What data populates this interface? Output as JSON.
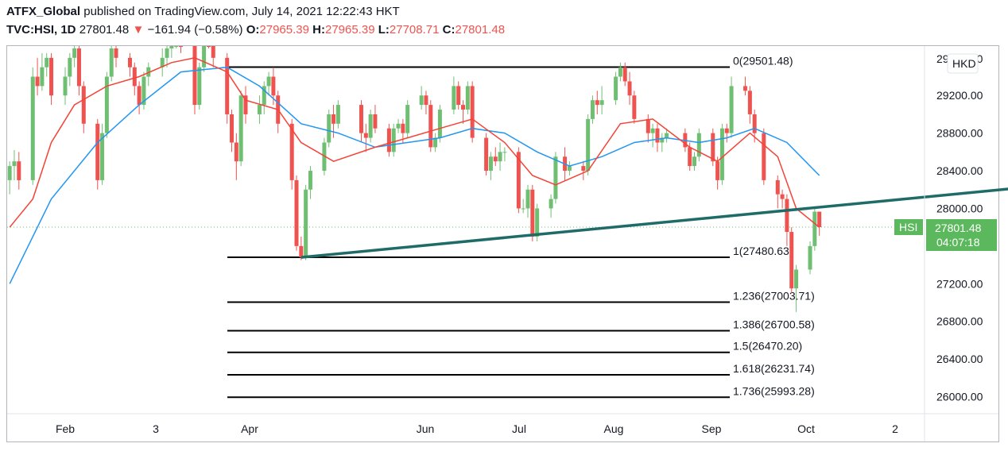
{
  "header": {
    "author": "ATFX_Global",
    "published": " published on TradingView.com, July 14, 2021 12:22:43 HKT",
    "symbol": "TVC:HSI, 1D",
    "last": "27801.48",
    "arrow": "▼",
    "change": "−161.94 (−0.58%)",
    "o_label": "O:",
    "o_val": "27965.39",
    "h_label": "H:",
    "h_val": "27965.39",
    "l_label": "L:",
    "l_val": "27708.71",
    "c_label": "C:",
    "c_val": "27801.48"
  },
  "price_scale": {
    "currency": "HKD",
    "ticks": [
      "29200.00",
      "28800.00",
      "28400.00",
      "28000.00",
      "27200.00",
      "26800.00",
      "26400.00",
      "26000.00"
    ],
    "top_partial": "29600.00",
    "last_price_label": "27801.48",
    "countdown": "04:07:18",
    "symbol_badge": "HSI"
  },
  "time_scale": {
    "labels": [
      "Feb",
      "3",
      "Apr",
      "Jun",
      "Jul",
      "Aug",
      "Sep",
      "Oct",
      "2"
    ]
  },
  "fib_levels": [
    {
      "label": "0(29501.48)",
      "price": 29501.48
    },
    {
      "label": "1(27480.63)",
      "price": 27480.63
    },
    {
      "label": "1.236(27003.71)",
      "price": 27003.71
    },
    {
      "label": "1.386(26700.58)",
      "price": 26700.58
    },
    {
      "label": "1.5(26470.20)",
      "price": 26470.2
    },
    {
      "label": "1.618(26231.74)",
      "price": 26231.74
    },
    {
      "label": "1.736(25993.28)",
      "price": 25993.28
    }
  ],
  "colors": {
    "up": "#6fbf73",
    "down": "#ef5350",
    "ma_fast": "#f44336",
    "ma_slow": "#2196f3",
    "trendline": "#1e6b67",
    "badge": "#5cb85c"
  },
  "chart_data": {
    "type": "candlestick",
    "title": "",
    "ylim": [
      25900,
      29700
    ],
    "trendline": {
      "start": [
        "2021-03-24",
        27480
      ],
      "end": [
        "2021-09-02",
        28250
      ]
    },
    "candles": [
      [
        "2021-01-20",
        28300,
        28450,
        28150,
        28500
      ],
      [
        "2021-01-21",
        28450,
        28500,
        28300,
        28620
      ],
      [
        "2021-01-22",
        28500,
        28300,
        28200,
        28600
      ],
      [
        "2021-01-25",
        28300,
        29400,
        28250,
        29500
      ],
      [
        "2021-01-26",
        29400,
        29300,
        29200,
        29600
      ],
      [
        "2021-01-27",
        29300,
        29500,
        29250,
        29650
      ],
      [
        "2021-01-28",
        29500,
        29600,
        29400,
        29650
      ],
      [
        "2021-01-29",
        29600,
        29200,
        29100,
        29650
      ],
      [
        "2021-02-01",
        29200,
        29400,
        29100,
        29500
      ],
      [
        "2021-02-02",
        29400,
        29600,
        29300,
        29650
      ],
      [
        "2021-02-03",
        29600,
        29700,
        29500,
        29750
      ],
      [
        "2021-02-04",
        29700,
        29300,
        29200,
        29750
      ],
      [
        "2021-02-05",
        29300,
        28900,
        28800,
        29350
      ],
      [
        "2021-02-08",
        28900,
        28300,
        28200,
        28950
      ],
      [
        "2021-02-09",
        28300,
        28800,
        28250,
        28900
      ],
      [
        "2021-02-10",
        28800,
        29400,
        28750,
        29450
      ],
      [
        "2021-02-11",
        29400,
        29700,
        29350,
        29800
      ],
      [
        "2021-02-12",
        29700,
        29600,
        29500,
        29750
      ],
      [
        "2021-02-15",
        29600,
        29500,
        29400,
        29650
      ],
      [
        "2021-02-16",
        29500,
        29300,
        29200,
        29550
      ],
      [
        "2021-02-17",
        29300,
        29100,
        29000,
        29350
      ],
      [
        "2021-02-18",
        29100,
        29400,
        29050,
        29450
      ],
      [
        "2021-02-19",
        29400,
        29500,
        29300,
        29550
      ],
      [
        "2021-02-22",
        29500,
        29600,
        29400,
        29700
      ],
      [
        "2021-02-23",
        29600,
        29700,
        29500,
        29800
      ],
      [
        "2021-02-24",
        29700,
        29800,
        29600,
        29850
      ],
      [
        "2021-02-25",
        29800,
        29900,
        29700,
        29950
      ],
      [
        "2021-02-26",
        29900,
        29800,
        29650,
        29950
      ],
      [
        "2021-03-01",
        29800,
        29100,
        29000,
        29850
      ],
      [
        "2021-03-02",
        29100,
        29500,
        29050,
        29550
      ],
      [
        "2021-03-03",
        29500,
        29900,
        29450,
        29950
      ],
      [
        "2021-03-04",
        29900,
        29800,
        29700,
        29950
      ],
      [
        "2021-03-05",
        29800,
        29600,
        29500,
        29850
      ],
      [
        "2021-03-08",
        29600,
        29000,
        28900,
        29650
      ],
      [
        "2021-03-09",
        29000,
        28700,
        28600,
        29050
      ],
      [
        "2021-03-10",
        28700,
        28500,
        28300,
        28800
      ],
      [
        "2021-03-11",
        28500,
        29200,
        28450,
        29250
      ],
      [
        "2021-03-12",
        29200,
        29000,
        28900,
        29300
      ],
      [
        "2021-03-15",
        29000,
        29100,
        28900,
        29200
      ],
      [
        "2021-03-16",
        29100,
        29300,
        29000,
        29350
      ],
      [
        "2021-03-17",
        29300,
        29400,
        29200,
        29450
      ],
      [
        "2021-03-18",
        29400,
        29200,
        29100,
        29500
      ],
      [
        "2021-03-19",
        29200,
        28900,
        28800,
        29250
      ],
      [
        "2021-03-22",
        28900,
        28300,
        28200,
        28950
      ],
      [
        "2021-03-23",
        28300,
        27600,
        27550,
        28350
      ],
      [
        "2021-03-24",
        27600,
        27480,
        27450,
        27700
      ],
      [
        "2021-03-25",
        27480,
        28200,
        27450,
        28250
      ],
      [
        "2021-03-26",
        28200,
        28400,
        28100,
        28450
      ],
      [
        "2021-03-29",
        28400,
        28700,
        28350,
        28750
      ],
      [
        "2021-03-30",
        28700,
        29000,
        28650,
        29050
      ],
      [
        "2021-03-31",
        29000,
        28900,
        28750,
        29100
      ],
      [
        "2021-04-01",
        28900,
        29100,
        28850,
        29150
      ],
      [
        "2021-04-06",
        29100,
        28800,
        28700,
        29150
      ],
      [
        "2021-04-07",
        28800,
        28750,
        28600,
        28900
      ],
      [
        "2021-04-08",
        28750,
        29000,
        28700,
        29050
      ],
      [
        "2021-04-09",
        29000,
        28850,
        28800,
        29100
      ],
      [
        "2021-04-12",
        28850,
        28600,
        28550,
        28900
      ],
      [
        "2021-04-13",
        28600,
        28850,
        28550,
        28900
      ],
      [
        "2021-04-14",
        28850,
        28900,
        28800,
        28950
      ],
      [
        "2021-04-15",
        28900,
        28800,
        28700,
        28950
      ],
      [
        "2021-04-16",
        28800,
        29100,
        28750,
        29150
      ],
      [
        "2021-04-19",
        29100,
        29200,
        29050,
        29300
      ],
      [
        "2021-04-20",
        29200,
        29100,
        29000,
        29250
      ],
      [
        "2021-04-21",
        29100,
        28650,
        28600,
        29150
      ],
      [
        "2021-04-22",
        28650,
        28750,
        28600,
        28800
      ],
      [
        "2021-04-23",
        28750,
        29050,
        28700,
        29100
      ],
      [
        "2021-04-26",
        29050,
        29300,
        29000,
        29400
      ],
      [
        "2021-04-27",
        29300,
        29100,
        29050,
        29350
      ],
      [
        "2021-04-28",
        29100,
        29050,
        28900,
        29150
      ],
      [
        "2021-04-29",
        29050,
        29300,
        29000,
        29350
      ],
      [
        "2021-04-30",
        29300,
        28750,
        28700,
        29350
      ],
      [
        "2021-05-03",
        28750,
        28400,
        28350,
        28800
      ],
      [
        "2021-05-04",
        28400,
        28550,
        28300,
        28600
      ],
      [
        "2021-05-05",
        28550,
        28500,
        28450,
        28650
      ],
      [
        "2021-05-06",
        28500,
        28600,
        28400,
        28700
      ],
      [
        "2021-05-07",
        28600,
        28600,
        28500,
        28650
      ],
      [
        "2021-05-10",
        28600,
        28000,
        27950,
        28650
      ],
      [
        "2021-05-11",
        28000,
        28000,
        27950,
        28100
      ],
      [
        "2021-05-12",
        28000,
        28200,
        27900,
        28250
      ],
      [
        "2021-05-13",
        28200,
        27700,
        27650,
        28250
      ],
      [
        "2021-05-14",
        27700,
        28000,
        27650,
        28050
      ],
      [
        "2021-05-17",
        28000,
        28100,
        27900,
        28150
      ],
      [
        "2021-05-18",
        28100,
        28550,
        28050,
        28600
      ],
      [
        "2021-05-20",
        28550,
        28400,
        28300,
        28650
      ],
      [
        "2021-05-21",
        28400,
        28450,
        28350,
        28500
      ],
      [
        "2021-05-24",
        28450,
        28400,
        28300,
        28500
      ],
      [
        "2021-05-25",
        28400,
        28950,
        28350,
        29000
      ],
      [
        "2021-05-26",
        28950,
        29150,
        28900,
        29200
      ],
      [
        "2021-05-27",
        29150,
        29100,
        29000,
        29250
      ],
      [
        "2021-05-28",
        29100,
        29150,
        29000,
        29300
      ],
      [
        "2021-05-31",
        29150,
        29400,
        29100,
        29450
      ],
      [
        "2021-06-01",
        29400,
        29500,
        29350,
        29550
      ],
      [
        "2021-06-02",
        29500,
        29350,
        29300,
        29550
      ],
      [
        "2021-06-03",
        29350,
        29200,
        29100,
        29450
      ],
      [
        "2021-06-04",
        29200,
        28950,
        28900,
        29250
      ],
      [
        "2021-06-07",
        28950,
        28800,
        28700,
        29000
      ],
      [
        "2021-06-08",
        28800,
        28850,
        28650,
        28900
      ],
      [
        "2021-06-09",
        28850,
        28700,
        28600,
        28900
      ],
      [
        "2021-06-10",
        28700,
        28750,
        28600,
        28800
      ],
      [
        "2021-06-11",
        28750,
        28800,
        28700,
        28850
      ],
      [
        "2021-06-15",
        28800,
        28650,
        28600,
        28850
      ],
      [
        "2021-06-16",
        28650,
        28450,
        28400,
        28700
      ],
      [
        "2021-06-17",
        28450,
        28550,
        28400,
        28600
      ],
      [
        "2021-06-18",
        28550,
        28800,
        28500,
        28850
      ],
      [
        "2021-06-21",
        28800,
        28500,
        28450,
        28850
      ],
      [
        "2021-06-22",
        28500,
        28300,
        28200,
        28550
      ],
      [
        "2021-06-23",
        28300,
        28850,
        28250,
        28900
      ],
      [
        "2021-06-24",
        28850,
        28800,
        28700,
        28900
      ],
      [
        "2021-06-25",
        28800,
        29300,
        28750,
        29400
      ],
      [
        "2021-06-28",
        29300,
        29250,
        29200,
        29400
      ],
      [
        "2021-06-29",
        29250,
        29000,
        28900,
        29300
      ],
      [
        "2021-06-30",
        29000,
        28800,
        28700,
        29050
      ],
      [
        "2021-07-02",
        28800,
        28300,
        28250,
        28850
      ],
      [
        "2021-07-05",
        28300,
        28150,
        28000,
        28350
      ],
      [
        "2021-07-06",
        28150,
        28100,
        28000,
        28200
      ],
      [
        "2021-07-07",
        28100,
        27750,
        27600,
        28150
      ],
      [
        "2021-07-08",
        27750,
        27150,
        27100,
        27800
      ],
      [
        "2021-07-09",
        27150,
        27350,
        26900,
        27400
      ],
      [
        "2021-07-12",
        27350,
        27600,
        27300,
        27650
      ],
      [
        "2021-07-13",
        27600,
        27965,
        27550,
        28000
      ],
      [
        "2021-07-14",
        27965.39,
        27801.48,
        27708.71,
        27965.39
      ]
    ],
    "ma_fast": [
      [
        "2021-01-20",
        27800
      ],
      [
        "2021-01-25",
        28100
      ],
      [
        "2021-01-29",
        28700
      ],
      [
        "2021-02-03",
        29100
      ],
      [
        "2021-02-10",
        29300
      ],
      [
        "2021-02-17",
        29400
      ],
      [
        "2021-02-24",
        29550
      ],
      [
        "2021-03-01",
        29600
      ],
      [
        "2021-03-08",
        29450
      ],
      [
        "2021-03-12",
        29150
      ],
      [
        "2021-03-19",
        29050
      ],
      [
        "2021-03-24",
        28700
      ],
      [
        "2021-03-31",
        28500
      ],
      [
        "2021-04-09",
        28650
      ],
      [
        "2021-04-16",
        28750
      ],
      [
        "2021-04-23",
        28850
      ],
      [
        "2021-04-30",
        28950
      ],
      [
        "2021-05-07",
        28700
      ],
      [
        "2021-05-13",
        28350
      ],
      [
        "2021-05-18",
        28250
      ],
      [
        "2021-05-25",
        28400
      ],
      [
        "2021-06-01",
        28900
      ],
      [
        "2021-06-08",
        28950
      ],
      [
        "2021-06-16",
        28650
      ],
      [
        "2021-06-22",
        28500
      ],
      [
        "2021-06-29",
        28800
      ],
      [
        "2021-07-05",
        28550
      ],
      [
        "2021-07-09",
        28000
      ],
      [
        "2021-07-14",
        27800
      ]
    ],
    "ma_slow": [
      [
        "2021-01-20",
        27200
      ],
      [
        "2021-01-29",
        28100
      ],
      [
        "2021-02-08",
        28700
      ],
      [
        "2021-02-17",
        29100
      ],
      [
        "2021-02-26",
        29450
      ],
      [
        "2021-03-08",
        29500
      ],
      [
        "2021-03-15",
        29300
      ],
      [
        "2021-03-24",
        28900
      ],
      [
        "2021-04-01",
        28800
      ],
      [
        "2021-04-09",
        28650
      ],
      [
        "2021-04-16",
        28700
      ],
      [
        "2021-04-23",
        28750
      ],
      [
        "2021-04-30",
        28850
      ],
      [
        "2021-05-07",
        28800
      ],
      [
        "2021-05-14",
        28600
      ],
      [
        "2021-05-21",
        28450
      ],
      [
        "2021-05-28",
        28550
      ],
      [
        "2021-06-04",
        28700
      ],
      [
        "2021-06-11",
        28750
      ],
      [
        "2021-06-18",
        28700
      ],
      [
        "2021-06-24",
        28750
      ],
      [
        "2021-06-30",
        28850
      ],
      [
        "2021-07-07",
        28700
      ],
      [
        "2021-07-14",
        28350
      ]
    ]
  }
}
